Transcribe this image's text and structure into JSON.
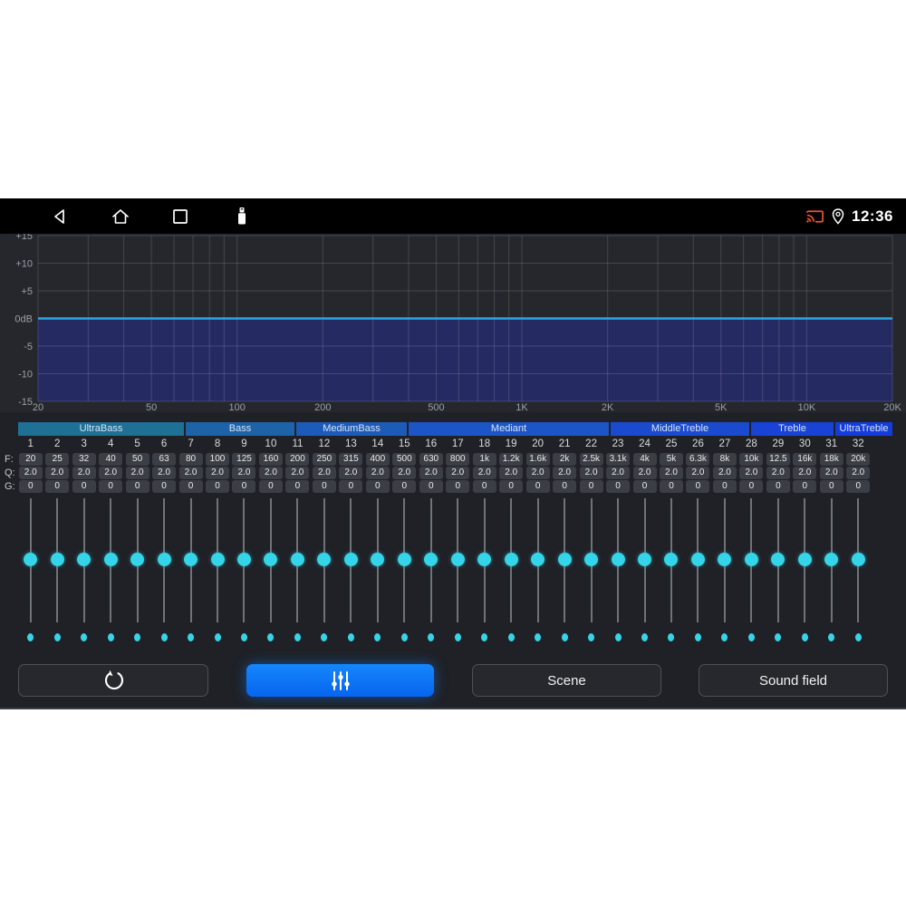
{
  "status_bar": {
    "time": "12:36",
    "cast_color": "#F0532E"
  },
  "graph": {
    "db_ticks": [
      {
        "label": "+15",
        "db": 15
      },
      {
        "label": "+10",
        "db": 10
      },
      {
        "label": "+5",
        "db": 5
      },
      {
        "label": "0dB",
        "db": 0
      },
      {
        "label": "-5",
        "db": -5
      },
      {
        "label": "-10",
        "db": -10
      },
      {
        "label": "-15",
        "db": -15
      }
    ],
    "freq_ticks": [
      {
        "label": "20",
        "hz": 20
      },
      {
        "label": "50",
        "hz": 50
      },
      {
        "label": "100",
        "hz": 100
      },
      {
        "label": "200",
        "hz": 200
      },
      {
        "label": "500",
        "hz": 500
      },
      {
        "label": "1K",
        "hz": 1000
      },
      {
        "label": "2K",
        "hz": 2000
      },
      {
        "label": "5K",
        "hz": 5000
      },
      {
        "label": "10K",
        "hz": 10000
      },
      {
        "label": "20K",
        "hz": 20000
      }
    ],
    "minor_grid_hz": [
      20,
      30,
      40,
      50,
      60,
      70,
      80,
      90,
      100,
      200,
      300,
      400,
      500,
      600,
      700,
      800,
      900,
      1000,
      2000,
      3000,
      4000,
      5000,
      6000,
      7000,
      8000,
      9000,
      10000,
      20000
    ],
    "db_range": [
      -15,
      15
    ],
    "hz_range": [
      20,
      20000
    ],
    "curve": {
      "type": "flat",
      "db": 0
    },
    "line_color": "#2BA6E3",
    "fill_color": "#262A63"
  },
  "band_groups": [
    {
      "label": "UltraBass",
      "color": "#1E7094"
    },
    {
      "label": "Bass",
      "color": "#1D63A8"
    },
    {
      "label": "MediumBass",
      "color": "#1C5CB8"
    },
    {
      "label": "Mediant",
      "color": "#1C55C6"
    },
    {
      "label": "MiddleTreble",
      "color": "#1A4BCE"
    },
    {
      "label": "Treble",
      "color": "#1843D4"
    },
    {
      "label": "UltraTreble",
      "color": "#143CDA"
    }
  ],
  "eq": {
    "row_labels": {
      "f": "F:",
      "q": "Q:",
      "g": "G:"
    },
    "band_numbers": [
      "1",
      "2",
      "3",
      "4",
      "5",
      "6",
      "7",
      "8",
      "9",
      "10",
      "11",
      "12",
      "13",
      "14",
      "15",
      "16",
      "17",
      "18",
      "19",
      "20",
      "21",
      "22",
      "23",
      "24",
      "25",
      "26",
      "27",
      "28",
      "29",
      "30",
      "31",
      "32"
    ],
    "frequencies": [
      "20",
      "25",
      "32",
      "40",
      "50",
      "63",
      "80",
      "100",
      "125",
      "160",
      "200",
      "250",
      "315",
      "400",
      "500",
      "630",
      "800",
      "1k",
      "1.2k",
      "1.6k",
      "2k",
      "2.5k",
      "3.1k",
      "4k",
      "5k",
      "6.3k",
      "8k",
      "10k",
      "12.5",
      "16k",
      "18k",
      "20k"
    ],
    "q_values": [
      "2.0",
      "2.0",
      "2.0",
      "2.0",
      "2.0",
      "2.0",
      "2.0",
      "2.0",
      "2.0",
      "2.0",
      "2.0",
      "2.0",
      "2.0",
      "2.0",
      "2.0",
      "2.0",
      "2.0",
      "2.0",
      "2.0",
      "2.0",
      "2.0",
      "2.0",
      "2.0",
      "2.0",
      "2.0",
      "2.0",
      "2.0",
      "2.0",
      "2.0",
      "2.0",
      "2.0",
      "2.0"
    ],
    "gain_values": [
      "0",
      "0",
      "0",
      "0",
      "0",
      "0",
      "0",
      "0",
      "0",
      "0",
      "0",
      "0",
      "0",
      "0",
      "0",
      "0",
      "0",
      "0",
      "0",
      "0",
      "0",
      "0",
      "0",
      "0",
      "0",
      "0",
      "0",
      "0",
      "0",
      "0",
      "0",
      "0"
    ],
    "slider_positions_db": [
      0,
      0,
      0,
      0,
      0,
      0,
      0,
      0,
      0,
      0,
      0,
      0,
      0,
      0,
      0,
      0,
      0,
      0,
      0,
      0,
      0,
      0,
      0,
      0,
      0,
      0,
      0,
      0,
      0,
      0,
      0,
      0
    ],
    "thumb_color": "#35D5E9"
  },
  "buttons": {
    "reset_icon": "reset-icon",
    "equalizer_icon": "equalizer-icon",
    "scene_label": "Scene",
    "sound_field_label": "Sound field",
    "active_color": "#0A78F2"
  }
}
